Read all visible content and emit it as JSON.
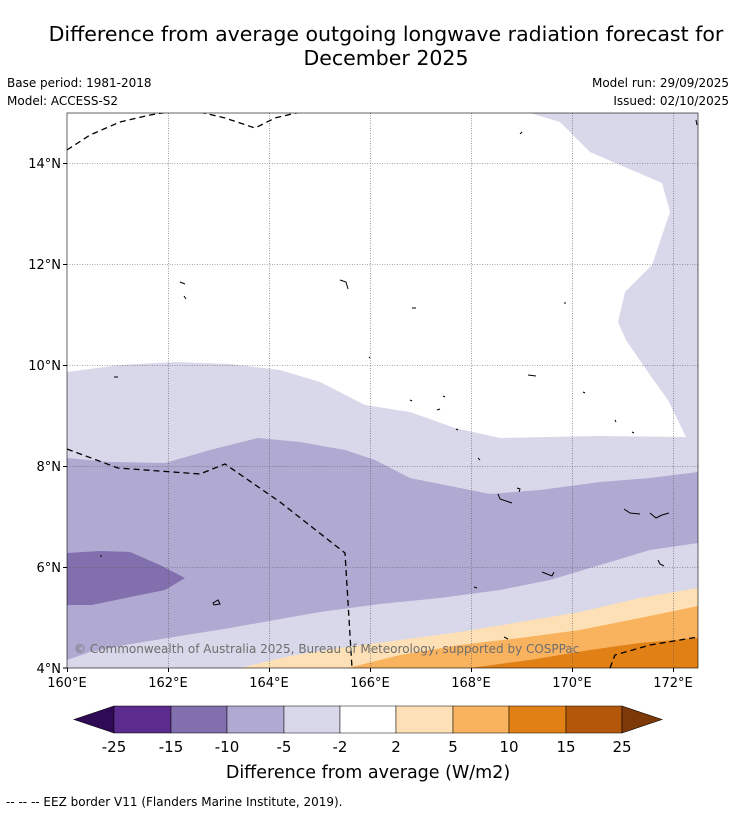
{
  "header": {
    "title_line1": "Difference from average outgoing longwave radiation forecast for",
    "title_line2": "December 2025",
    "base_period": "Base period: 1981-2018",
    "model": "Model: ACCESS-S2",
    "model_run": "Model run: 29/09/2025",
    "issued": "Issued: 02/10/2025"
  },
  "map": {
    "lon_ticks": [
      "160°E",
      "162°E",
      "164°E",
      "166°E",
      "168°E",
      "170°E",
      "172°E"
    ],
    "lat_ticks": [
      "14°N",
      "12°N",
      "10°N",
      "8°N",
      "6°N",
      "4°N"
    ],
    "copyright": "© Commonwealth of Australia 2025, Bureau of Meteorology, supported by COSPPac"
  },
  "colorbar": {
    "ticks": [
      "-25",
      "-15",
      "-10",
      "-5",
      "-2",
      "2",
      "5",
      "10",
      "15",
      "25"
    ],
    "label": "Difference from average (W/m2)",
    "colors": [
      "#2e0b54",
      "#5c2b8e",
      "#8170ad",
      "#b0a9d1",
      "#d8d8ea",
      "#ffffff",
      "#fde0b5",
      "#f9b25e",
      "#e08015",
      "#b3580b",
      "#7d3a08"
    ]
  },
  "legend": {
    "eez": "--  --  -- EEZ border V11 (Flanders Marine Institute, 2019)."
  }
}
